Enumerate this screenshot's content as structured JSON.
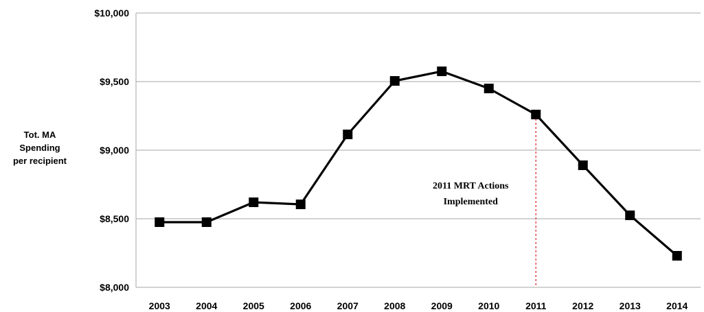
{
  "chart_data": {
    "type": "line",
    "title": "",
    "xlabel": "",
    "ylabel": [
      "Tot. MA",
      "Spending",
      "per recipient"
    ],
    "categories": [
      "2003",
      "2004",
      "2005",
      "2006",
      "2007",
      "2008",
      "2009",
      "2010",
      "2011",
      "2012",
      "2013",
      "2014"
    ],
    "series": [
      {
        "values": [
          8475,
          8475,
          8620,
          8605,
          9115,
          9505,
          9575,
          9450,
          9260,
          8890,
          8525,
          8230
        ]
      }
    ],
    "ylim": [
      8000,
      10000
    ],
    "yticks": [
      8000,
      8500,
      9000,
      9500,
      10000
    ],
    "ytick_labels": [
      "$8,000",
      "$8,500",
      "$9,000",
      "$9,500",
      "$10,000"
    ],
    "grid": true,
    "line_color": "#000000",
    "marker": "square",
    "annotation": {
      "text_line1": "2011 MRT Actions",
      "text_line2": "Implemented",
      "x_category": "2011",
      "line_color": "#e03030"
    }
  }
}
